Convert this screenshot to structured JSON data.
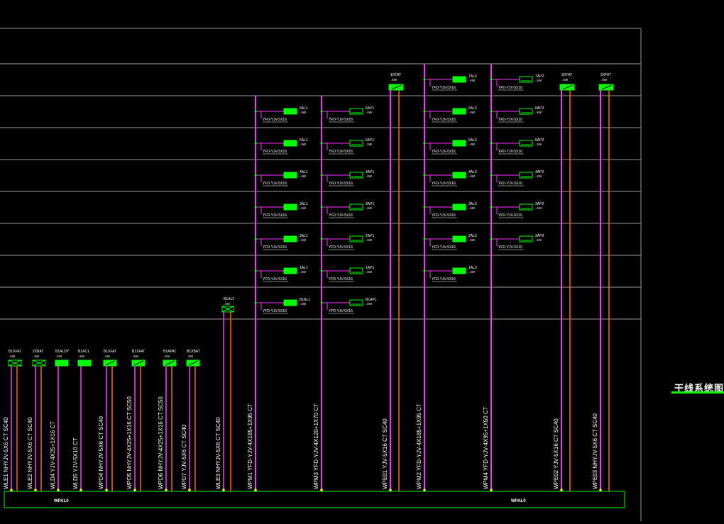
{
  "title": "干线系统图",
  "bus_labels": [
    "WPAL0",
    "WPAL0"
  ],
  "floor_feeders": [
    {
      "main": "WPM1 YFD-YJV-4X185+1X95 CT",
      "color": "#ff33ff",
      "units": [
        {
          "label": [
            "6AL1",
            "..kW"
          ],
          "cable": "YFD-YJV-5X16"
        },
        {
          "label": [
            "5AL1",
            "..kW"
          ],
          "cable": "YFD-YJV-5X16"
        },
        {
          "label": [
            "4AL1",
            "..kW"
          ],
          "cable": "YFD-YJV-5X16"
        },
        {
          "label": [
            "3AL1",
            "..kW"
          ],
          "cable": "YFD-YJV-5X16"
        },
        {
          "label": [
            "2AL1",
            "..kW"
          ],
          "cable": "YFD-YJV-5X16"
        },
        {
          "label": [
            "1AL1",
            "..kW"
          ],
          "cable": "YFD-YJV-5X16"
        },
        {
          "label": [
            "B1AL1",
            "..kW"
          ],
          "cable": "YFD-YJV-5X16"
        }
      ]
    },
    {
      "main": "WPM3 YFD-YJV-4X120+1X70 CT",
      "color": "#ff33ff",
      "units": [
        {
          "label": [
            "6AP1",
            "..kW"
          ],
          "cable": "YFD-YJV-5X16"
        },
        {
          "label": [
            "5AP1",
            "..kW"
          ],
          "cable": "YFD-YJV-5X16"
        },
        {
          "label": [
            "4AP1",
            "..kW"
          ],
          "cable": "YFD-YJV-5X16"
        },
        {
          "label": [
            "3AP1",
            "..kW"
          ],
          "cable": "YFD-YJV-5X16"
        },
        {
          "label": [
            "2AP1",
            "..kW"
          ],
          "cable": "YFD-YJV-5X16"
        },
        {
          "label": [
            "1AP1",
            "..kW"
          ],
          "cable": "YFD-YJV-5X16"
        },
        {
          "label": [
            "B1AP1",
            "..kW"
          ],
          "cable": "YFD-YJV-5X16"
        }
      ]
    },
    {
      "main": "WPM2 YFD-YJV-4X185+1X95 CT",
      "color": "#ff33ff",
      "units": [
        {
          "label": [
            "7AL3",
            "..kW"
          ],
          "cable": "YFD-YJV-5X16"
        },
        {
          "label": [
            "6AL3",
            "..kW"
          ],
          "cable": "YFD-YJV-5X16"
        },
        {
          "label": [
            "5AL3",
            "..kW"
          ],
          "cable": "YFD-YJV-5X16"
        },
        {
          "label": [
            "4AL3",
            "..kW"
          ],
          "cable": "YFD-YJV-5X16"
        },
        {
          "label": [
            "3AL3",
            "..kW"
          ],
          "cable": "YFD-YJV-5X16"
        },
        {
          "label": [
            "2AL3",
            "..kW"
          ],
          "cable": "YFD-YJV-5X16"
        },
        {
          "label": [
            "1AL3",
            "..kW"
          ],
          "cable": "YFD-YJV-5X16"
        }
      ]
    },
    {
      "main": "WPM4 YFD-YJV-4X95+1X50 CT",
      "color": "#ff33ff",
      "units": [
        {
          "label": [
            "7AP2",
            "..kW"
          ],
          "cable": "YFD-YJV-5X10"
        },
        {
          "label": [
            "6AP2",
            "..kW"
          ],
          "cable": "YFD-YJV-5X10"
        },
        {
          "label": [
            "5AP2",
            "..kW"
          ],
          "cable": "YFD-YJV-5X10"
        },
        {
          "label": [
            "4AP2",
            "..kW"
          ],
          "cable": "YFD-YJV-5X10"
        },
        {
          "label": [
            "3AP2",
            "..kW"
          ],
          "cable": "YFD-YJV-5X10"
        },
        {
          "label": [
            "2AP2",
            "..kW"
          ],
          "cable": "YFD-YJV-5X10"
        }
      ]
    }
  ],
  "roof_boxes": [
    {
      "label": [
        "1DTAT",
        "..kW"
      ],
      "main": "WPE01  YJV-5X16  CT  SC40"
    },
    {
      "label": [
        "2DTAT",
        "..kW"
      ],
      "main": "WPE02  YJV-5X16  CT  SC40"
    },
    {
      "label": [
        "2XFAT",
        "..kW"
      ],
      "main": "WPE03  NHYJV-5X6  CT  SC40"
    }
  ],
  "mid_box": {
    "label": [
      "B1AL2",
      "..kW"
    ],
    "main": "WLE3  NHYJV-5X6  CT  SC40"
  },
  "ground_boxes": [
    {
      "label": [
        "B1XFAT",
        "..kW"
      ],
      "main": "WLE1  NHYJV-5X6  CT  SC40"
    },
    {
      "label": [
        "2XBAT",
        "..kW"
      ],
      "main": "WLE2  NHYJV-5X6  CT  SC40"
    },
    {
      "label": [
        "B1ALDY",
        "..kW"
      ],
      "main": "WLD4  YJV-4X25+1X16  CT"
    },
    {
      "label": [
        "B1AC1",
        "..kW"
      ],
      "main": "WLD5  YJV-5X10  CT"
    },
    {
      "label": [
        "B1XFAT",
        "..kW"
      ],
      "main": "WPD4  NHYJV-5X6  CT  SC40"
    },
    {
      "label": [
        "B1XFAT",
        "..kW"
      ],
      "main": "WPD5  NHYJV-4X25+1X16  CT SC50"
    },
    {
      "label": [
        "B1APAT",
        "..kW"
      ],
      "main": "WPD6  NHYJV-4X25+1X16  CT SC50"
    },
    {
      "label": [
        "B1XBAT",
        "..kW"
      ],
      "main": "WPD7  YJV-5X6  CT  SC40"
    }
  ],
  "colors": {
    "bus": "#00ff00",
    "feeder": "#ff33ff",
    "riser": "#ff6600",
    "grid": "#9a9a9a",
    "box": "#00ff00"
  }
}
